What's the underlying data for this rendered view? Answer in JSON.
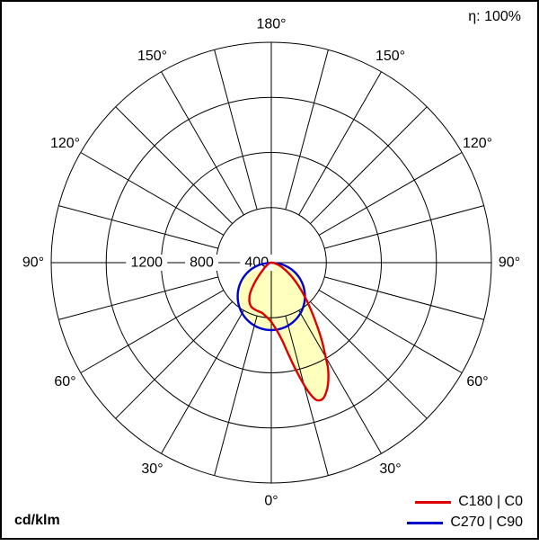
{
  "header": {
    "efficiency": "η: 100%"
  },
  "footer": {
    "unit": "cd/klm"
  },
  "legend": {
    "items": [
      {
        "label": "C180 | C0",
        "color": "#dd0000"
      },
      {
        "label": "C270 | C90",
        "color": "#0000cc"
      }
    ]
  },
  "chart_data": {
    "type": "polar",
    "subtype": "luminous-intensity-distribution",
    "unit": "cd/klm",
    "efficiency": "η: 100%",
    "rmax": 1600,
    "radial_ticks": [
      400,
      800,
      1200,
      1600
    ],
    "radial_tick_labels": [
      {
        "value": 400,
        "text": "400"
      },
      {
        "value": 800,
        "text": "800"
      },
      {
        "value": 1200,
        "text": "1200"
      }
    ],
    "angle_tick_step_deg": 15,
    "angle_labels": [
      {
        "gamma": 0,
        "text": "0°"
      },
      {
        "gamma": 30,
        "text": "30°"
      },
      {
        "gamma": -30,
        "text": "30°"
      },
      {
        "gamma": 60,
        "text": "60°"
      },
      {
        "gamma": -60,
        "text": "60°"
      },
      {
        "gamma": 90,
        "text": "90°"
      },
      {
        "gamma": -90,
        "text": "90°"
      },
      {
        "gamma": 120,
        "text": "120°"
      },
      {
        "gamma": -120,
        "text": "120°"
      },
      {
        "gamma": 150,
        "text": "150°"
      },
      {
        "gamma": -150,
        "text": "150°"
      },
      {
        "gamma": 180,
        "text": "180°"
      }
    ],
    "fill_color": "#ffffbe",
    "grid_color": "#000000",
    "series": [
      {
        "name": "C270 | C90",
        "color": "#0000cc",
        "points": [
          [
            -90,
            0
          ],
          [
            -80,
            85
          ],
          [
            -70,
            168
          ],
          [
            -60,
            245
          ],
          [
            -50,
            315
          ],
          [
            -40,
            375
          ],
          [
            -30,
            424
          ],
          [
            -20,
            460
          ],
          [
            -10,
            483
          ],
          [
            0,
            490
          ],
          [
            10,
            483
          ],
          [
            20,
            460
          ],
          [
            30,
            424
          ],
          [
            40,
            375
          ],
          [
            50,
            315
          ],
          [
            60,
            245
          ],
          [
            70,
            168
          ],
          [
            80,
            85
          ],
          [
            90,
            0
          ]
        ]
      },
      {
        "name": "C180 | C0",
        "color": "#dd0000",
        "points": [
          [
            -90,
            0
          ],
          [
            -80,
            10
          ],
          [
            -70,
            20
          ],
          [
            -60,
            35
          ],
          [
            -55,
            50
          ],
          [
            -50,
            75
          ],
          [
            -45,
            115
          ],
          [
            -40,
            185
          ],
          [
            -35,
            265
          ],
          [
            -30,
            320
          ],
          [
            -25,
            350
          ],
          [
            -20,
            360
          ],
          [
            -15,
            365
          ],
          [
            -10,
            372
          ],
          [
            -5,
            395
          ],
          [
            0,
            430
          ],
          [
            5,
            500
          ],
          [
            8,
            570
          ],
          [
            10,
            650
          ],
          [
            12,
            750
          ],
          [
            14,
            860
          ],
          [
            16,
            970
          ],
          [
            18,
            1045
          ],
          [
            20,
            1060
          ],
          [
            22,
            1040
          ],
          [
            25,
            975
          ],
          [
            28,
            880
          ],
          [
            30,
            790
          ],
          [
            33,
            675
          ],
          [
            36,
            565
          ],
          [
            40,
            450
          ],
          [
            45,
            340
          ],
          [
            50,
            255
          ],
          [
            55,
            190
          ],
          [
            60,
            135
          ],
          [
            65,
            95
          ],
          [
            70,
            65
          ],
          [
            75,
            42
          ],
          [
            80,
            25
          ],
          [
            85,
            12
          ],
          [
            90,
            0
          ]
        ]
      }
    ]
  }
}
